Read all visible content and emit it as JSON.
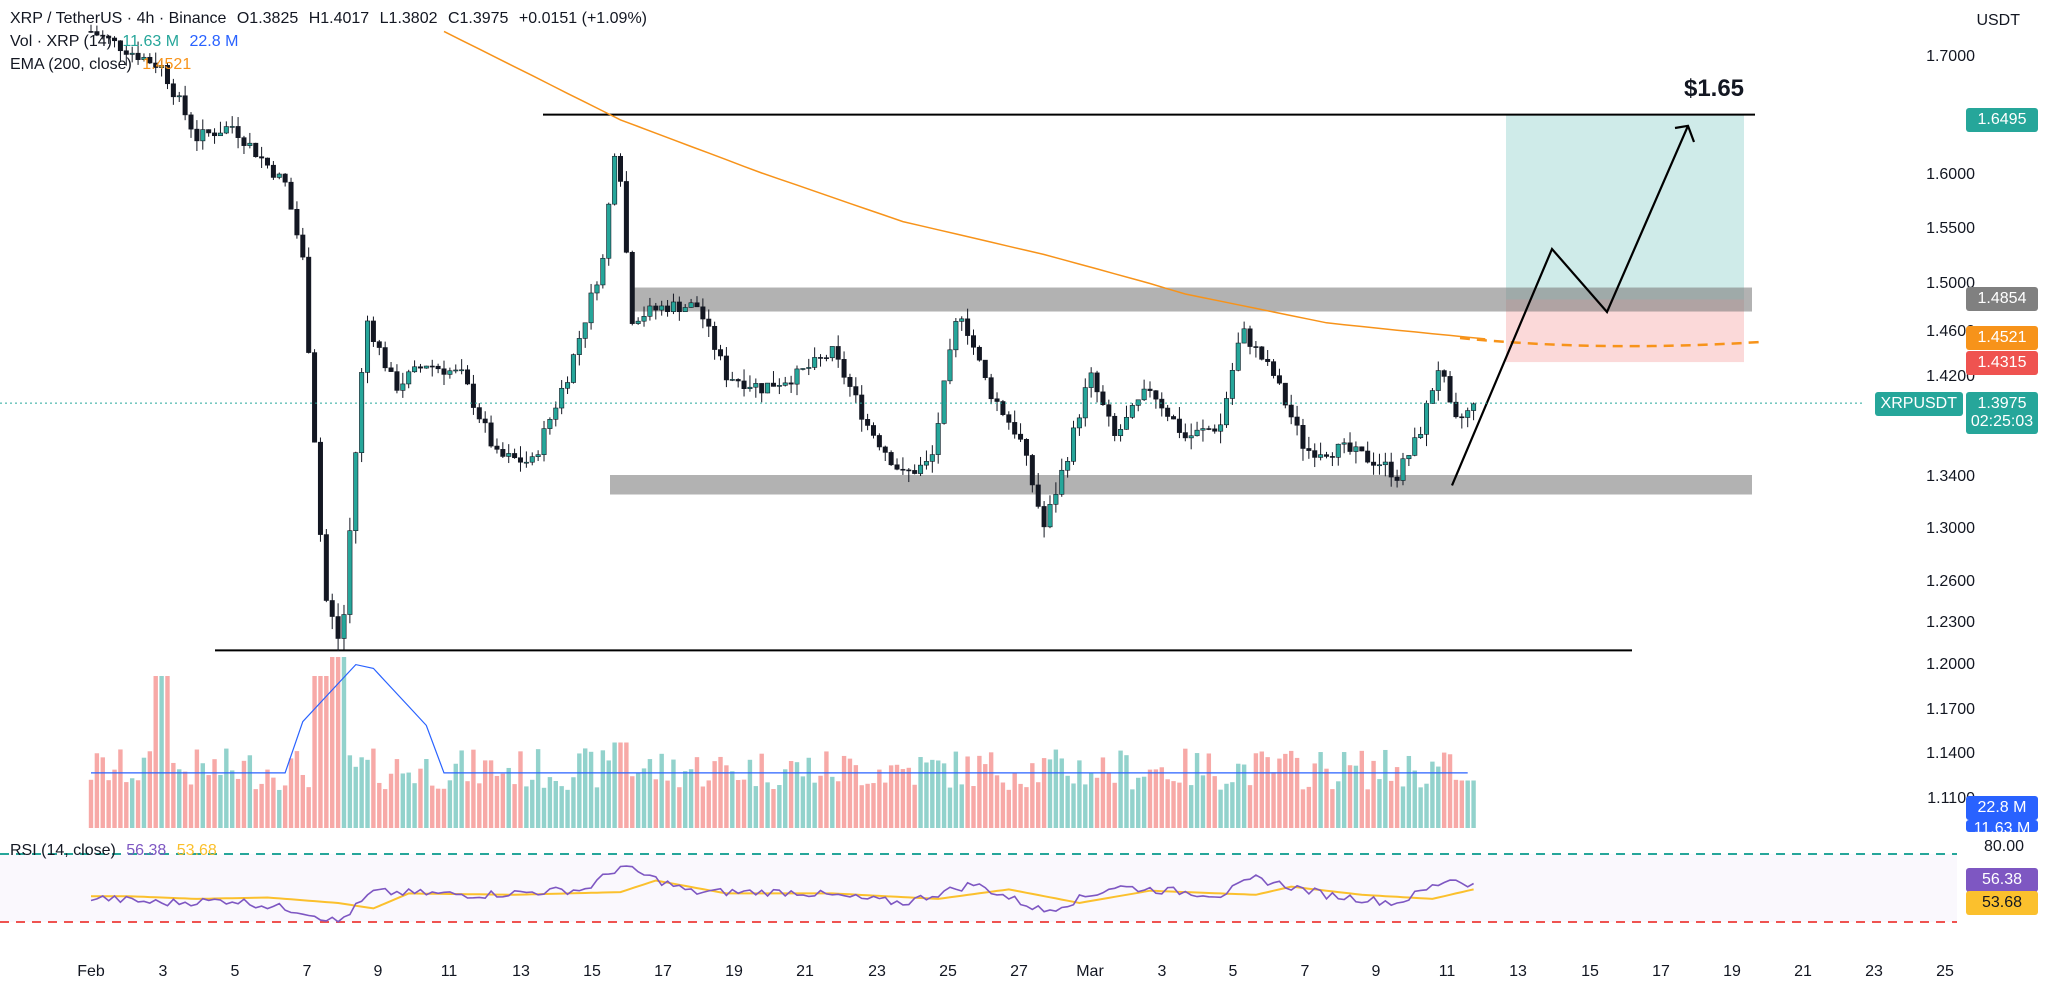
{
  "header": {
    "symbol": "XRP / TetherUS · 4h · Binance",
    "open": "O1.3825",
    "high": "H1.4017",
    "low": "L1.3802",
    "close": "C1.3975",
    "change": "+0.0151 (+1.09%)",
    "vol_label": "Vol · XRP (14)",
    "vol_value1": "11.63 M",
    "vol_value2": "22.8 M",
    "ema_label": "EMA (200, close)",
    "ema_value": "1.4521",
    "rsi_label": "RSI (14, close)",
    "rsi_value1": "56.38",
    "rsi_value2": "53.68"
  },
  "currency": "USDT",
  "annotation": "$1.65",
  "price_tags": {
    "target": "1.6495",
    "resistance": "1.4854",
    "ema": "1.4521",
    "stop": "1.4315",
    "symbol": "XRPUSDT",
    "last": "1.3975",
    "countdown": "02:25:03",
    "vol_ma": "22.8 M",
    "vol_last": "11.63 M",
    "rsi": "56.38",
    "rsi_ma": "53.68"
  },
  "rsi_levels": [
    "80.00"
  ],
  "colors": {
    "up": "#26a69a",
    "down": "#ef5350",
    "ema": "#f7931a",
    "rsi": "#7e57c2",
    "rsi_ma": "#fbc02d",
    "vol_ma": "#2962ff"
  },
  "chart_data": {
    "type": "candlestick",
    "interval": "4h",
    "y_ticks": [
      "1.7000",
      "1.6000",
      "1.5500",
      "1.5000",
      "1.4600",
      "1.4200",
      "1.3400",
      "1.3000",
      "1.2600",
      "1.2300",
      "1.2000",
      "1.1700",
      "1.1400",
      "1.1100"
    ],
    "x_ticks": [
      "Feb",
      "3",
      "5",
      "7",
      "9",
      "11",
      "13",
      "15",
      "17",
      "19",
      "21",
      "23",
      "25",
      "27",
      "Mar",
      "3",
      "5",
      "7",
      "9",
      "11",
      "13",
      "15",
      "17",
      "19",
      "21",
      "23",
      "25"
    ],
    "levels": {
      "top": 1.6495,
      "resistance_zone": [
        1.4754,
        1.4954
      ],
      "support_zone": [
        1.325,
        1.34
      ],
      "bottom": 1.209
    },
    "position": {
      "entry": 1.4854,
      "target": 1.6495,
      "stop": 1.4315
    },
    "path_prices": [
      1.332,
      1.53,
      1.475,
      1.64
    ],
    "close_key": [
      {
        "d": 0,
        "p": 1.72
      },
      {
        "d": 2,
        "p": 1.69
      },
      {
        "d": 3,
        "p": 1.63
      },
      {
        "d": 4,
        "p": 1.64
      },
      {
        "d": 5.5,
        "p": 1.59
      },
      {
        "d": 6,
        "p": 1.52
      },
      {
        "d": 6.6,
        "p": 1.25
      },
      {
        "d": 7.1,
        "p": 1.21
      },
      {
        "d": 7.8,
        "p": 1.47
      },
      {
        "d": 8.6,
        "p": 1.41
      },
      {
        "d": 9.5,
        "p": 1.43
      },
      {
        "d": 10.5,
        "p": 1.42
      },
      {
        "d": 11.5,
        "p": 1.355
      },
      {
        "d": 12.5,
        "p": 1.35
      },
      {
        "d": 13.5,
        "p": 1.42
      },
      {
        "d": 14.5,
        "p": 1.52
      },
      {
        "d": 14.9,
        "p": 1.64
      },
      {
        "d": 15.3,
        "p": 1.47
      },
      {
        "d": 16.3,
        "p": 1.48
      },
      {
        "d": 17.2,
        "p": 1.48
      },
      {
        "d": 18,
        "p": 1.42
      },
      {
        "d": 19,
        "p": 1.41
      },
      {
        "d": 20,
        "p": 1.42
      },
      {
        "d": 21,
        "p": 1.44
      },
      {
        "d": 22,
        "p": 1.38
      },
      {
        "d": 23,
        "p": 1.34
      },
      {
        "d": 23.8,
        "p": 1.35
      },
      {
        "d": 24.6,
        "p": 1.48
      },
      {
        "d": 25.4,
        "p": 1.41
      },
      {
        "d": 26.3,
        "p": 1.37
      },
      {
        "d": 27,
        "p": 1.3
      },
      {
        "d": 27.6,
        "p": 1.35
      },
      {
        "d": 28.3,
        "p": 1.42
      },
      {
        "d": 29,
        "p": 1.37
      },
      {
        "d": 30,
        "p": 1.41
      },
      {
        "d": 31,
        "p": 1.37
      },
      {
        "d": 32,
        "p": 1.38
      },
      {
        "d": 32.6,
        "p": 1.46
      },
      {
        "d": 33.5,
        "p": 1.42
      },
      {
        "d": 34.4,
        "p": 1.36
      },
      {
        "d": 35.5,
        "p": 1.36
      },
      {
        "d": 36.5,
        "p": 1.35
      },
      {
        "d": 37,
        "p": 1.34
      },
      {
        "d": 37.6,
        "p": 1.37
      },
      {
        "d": 38.2,
        "p": 1.43
      },
      {
        "d": 38.6,
        "p": 1.38
      },
      {
        "d": 39.3,
        "p": 1.3975
      }
    ],
    "ema_key": [
      {
        "d": 10,
        "p": 1.72
      },
      {
        "d": 15,
        "p": 1.645
      },
      {
        "d": 19,
        "p": 1.6
      },
      {
        "d": 23,
        "p": 1.555
      },
      {
        "d": 27,
        "p": 1.525
      },
      {
        "d": 31,
        "p": 1.49
      },
      {
        "d": 35,
        "p": 1.466
      },
      {
        "d": 39.5,
        "p": 1.4521
      }
    ],
    "volume_spikes": [
      {
        "d": 2,
        "v": 8
      },
      {
        "d": 6.5,
        "v": 8
      },
      {
        "d": 7,
        "v": 9
      },
      {
        "d": 15,
        "v": 4.5
      },
      {
        "d": 39,
        "v": 2.5
      }
    ],
    "rsi_key": [
      {
        "d": 0,
        "v": 48
      },
      {
        "d": 2,
        "v": 44
      },
      {
        "d": 4,
        "v": 46
      },
      {
        "d": 6,
        "v": 38
      },
      {
        "d": 7,
        "v": 30
      },
      {
        "d": 8,
        "v": 52
      },
      {
        "d": 11,
        "v": 50
      },
      {
        "d": 14,
        "v": 54
      },
      {
        "d": 15,
        "v": 71
      },
      {
        "d": 17,
        "v": 52
      },
      {
        "d": 20,
        "v": 52
      },
      {
        "d": 23,
        "v": 44
      },
      {
        "d": 25,
        "v": 58
      },
      {
        "d": 27,
        "v": 38
      },
      {
        "d": 29,
        "v": 56
      },
      {
        "d": 32,
        "v": 50
      },
      {
        "d": 33,
        "v": 62
      },
      {
        "d": 35,
        "v": 50
      },
      {
        "d": 37,
        "v": 44
      },
      {
        "d": 38.5,
        "v": 62
      },
      {
        "d": 39.3,
        "v": 56.38
      }
    ]
  }
}
